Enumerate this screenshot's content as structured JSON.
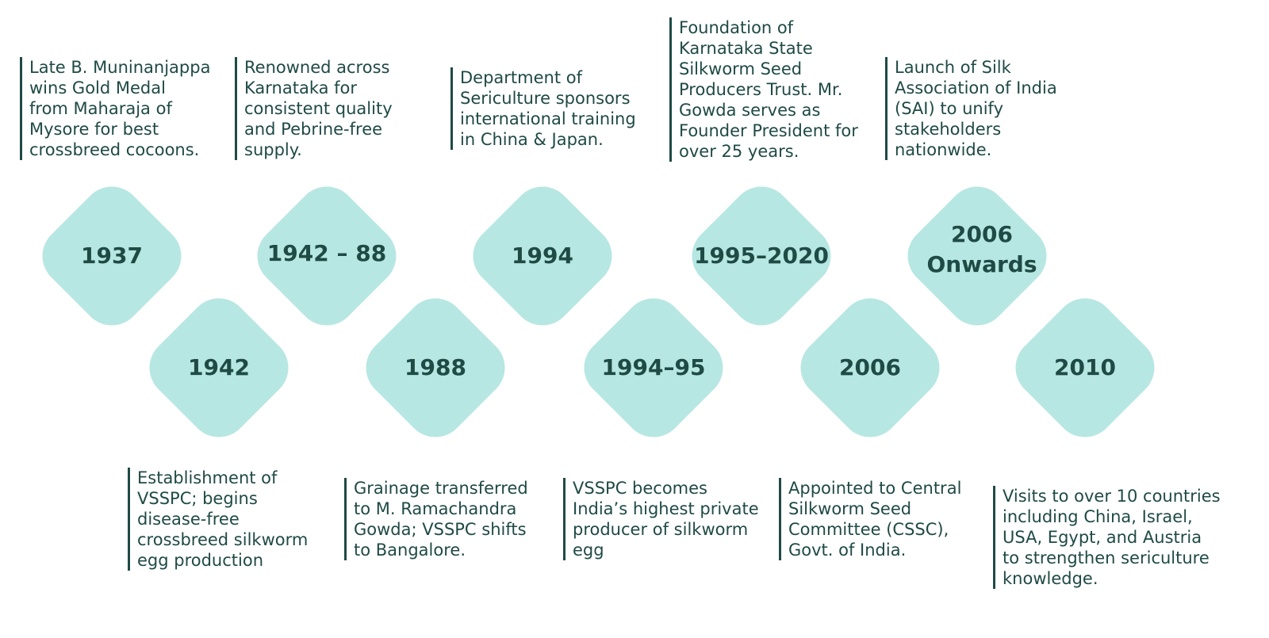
{
  "timeline": [
    {
      "year": "1937",
      "lines": [
        "Late B. Muninanjappa",
        "wins Gold Medal",
        "from Maharaja of",
        "Mysore for best",
        "crossbreed cocoons."
      ]
    },
    {
      "year": "1942",
      "lines": [
        "Establishment of",
        "VSSPC; begins",
        "disease-free",
        "crossbreed silkworm",
        "egg production"
      ]
    },
    {
      "year": "1942 – 88",
      "lines": [
        "Renowned across",
        "Karnataka for",
        "consistent quality",
        "and Pebrine-free",
        "supply."
      ]
    },
    {
      "year": "1988",
      "lines": [
        "Grainage transferred",
        "to M. Ramachandra",
        "Gowda; VSSPC shifts",
        "to Bangalore."
      ]
    },
    {
      "year": "1994",
      "lines": [
        "Department of",
        "Sericulture sponsors",
        "international training",
        "in China & Japan."
      ]
    },
    {
      "year": "1994–95",
      "lines": [
        "VSSPC becomes",
        "India’s highest private",
        "producer of silkworm",
        "egg"
      ]
    },
    {
      "year": "1995–2020",
      "lines": [
        "Foundation of",
        "Karnataka State",
        "Silkworm Seed",
        "Producers Trust. Mr.",
        "Gowda serves as",
        "Founder President for",
        "over 25 years."
      ]
    },
    {
      "year": "2006",
      "lines": [
        "Appointed to Central",
        "Silkworm Seed",
        "Committee (CSSC),",
        "Govt. of India."
      ]
    },
    {
      "year": "2006 Onwards",
      "lines": [
        "Launch of Silk",
        "Association of India",
        "(SAI) to unify",
        "stakeholders",
        "nationwide."
      ]
    },
    {
      "year": "2010",
      "lines": [
        "Visits to over 10 countries",
        "including China, Israel,",
        "USA, Egypt, and Austria",
        "to strengthen sericulture",
        "knowledge."
      ]
    }
  ],
  "colors": {
    "diamond_fill": "#b7e7e2",
    "text": "#1f4a45",
    "background": "#ffffff"
  }
}
